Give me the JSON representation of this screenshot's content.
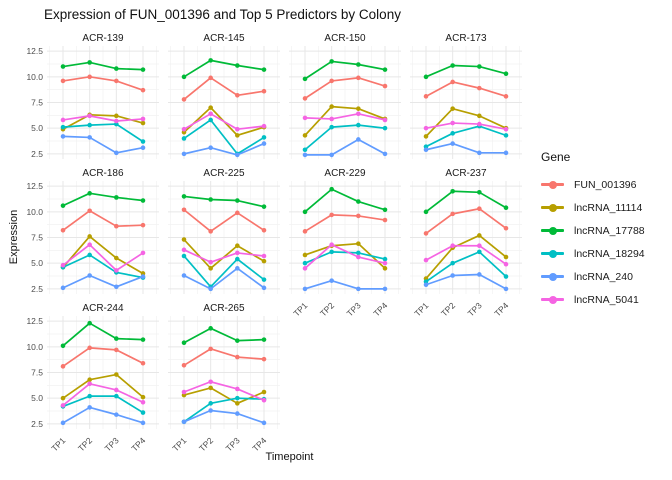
{
  "title": "Expression of FUN_001396 and Top 5 Predictors by Colony",
  "axes": {
    "x_title": "Timepoint",
    "y_title": "Expression",
    "x_ticks": [
      "TP1",
      "TP2",
      "TP3",
      "TP4"
    ],
    "y_ticks": [
      "2.5",
      "5.0",
      "7.5",
      "10.0",
      "12.5"
    ]
  },
  "legend": {
    "title": "Gene",
    "entries": [
      {
        "name": "FUN_001396",
        "color": "#F8766D"
      },
      {
        "name": "lncRNA_11114",
        "color": "#B79F00"
      },
      {
        "name": "lncRNA_17788",
        "color": "#00BA38"
      },
      {
        "name": "lncRNA_18294",
        "color": "#00BFC4"
      },
      {
        "name": "lncRNA_240",
        "color": "#619CFF"
      },
      {
        "name": "lncRNA_5041",
        "color": "#F564E3"
      }
    ]
  },
  "chart_data": {
    "type": "line",
    "title": "Expression of FUN_001396 and Top 5 Predictors by Colony",
    "xlabel": "Timepoint",
    "ylabel": "Expression",
    "x_categories": [
      "TP1",
      "TP2",
      "TP3",
      "TP4"
    ],
    "ylim": [
      2.0,
      13.0
    ],
    "y_major_ticks": [
      2.5,
      5.0,
      7.5,
      10.0,
      12.5
    ],
    "y_minor_gridlines": [
      3.75,
      6.25,
      8.75,
      11.25
    ],
    "grid": true,
    "legend_position": "right",
    "facet_columns": 4,
    "series_names": [
      "FUN_001396",
      "lncRNA_11114",
      "lncRNA_17788",
      "lncRNA_18294",
      "lncRNA_240",
      "lncRNA_5041"
    ],
    "series_colors": {
      "FUN_001396": "#F8766D",
      "lncRNA_11114": "#B79F00",
      "lncRNA_17788": "#00BA38",
      "lncRNA_18294": "#00BFC4",
      "lncRNA_240": "#619CFF",
      "lncRNA_5041": "#F564E3"
    },
    "facets": [
      {
        "name": "ACR-139",
        "values": {
          "FUN_001396": [
            9.6,
            10.0,
            9.6,
            8.7
          ],
          "lncRNA_11114": [
            4.9,
            6.3,
            6.2,
            5.5
          ],
          "lncRNA_17788": [
            11.0,
            11.4,
            10.8,
            10.7
          ],
          "lncRNA_18294": [
            5.1,
            5.3,
            5.4,
            3.7
          ],
          "lncRNA_240": [
            4.2,
            4.1,
            2.6,
            3.1
          ],
          "lncRNA_5041": [
            5.8,
            6.2,
            5.7,
            5.9
          ]
        }
      },
      {
        "name": "ACR-145",
        "values": {
          "FUN_001396": [
            7.8,
            9.9,
            8.2,
            8.6
          ],
          "lncRNA_11114": [
            4.6,
            7.0,
            4.3,
            5.1
          ],
          "lncRNA_17788": [
            10.0,
            11.6,
            11.1,
            10.7
          ],
          "lncRNA_18294": [
            4.0,
            5.8,
            2.5,
            4.1
          ],
          "lncRNA_240": [
            2.5,
            3.1,
            2.4,
            3.5
          ],
          "lncRNA_5041": [
            4.9,
            6.4,
            4.9,
            5.2
          ]
        }
      },
      {
        "name": "ACR-150",
        "values": {
          "FUN_001396": [
            7.9,
            9.6,
            9.9,
            9.1
          ],
          "lncRNA_11114": [
            4.3,
            7.1,
            6.9,
            5.9
          ],
          "lncRNA_17788": [
            9.8,
            11.5,
            11.2,
            10.7
          ],
          "lncRNA_18294": [
            2.9,
            5.1,
            5.3,
            5.0
          ],
          "lncRNA_240": [
            2.4,
            2.4,
            3.9,
            2.5
          ],
          "lncRNA_5041": [
            6.0,
            5.9,
            6.4,
            5.8
          ]
        }
      },
      {
        "name": "ACR-173",
        "values": {
          "FUN_001396": [
            8.1,
            9.5,
            8.9,
            8.1
          ],
          "lncRNA_11114": [
            4.2,
            6.9,
            6.2,
            5.0
          ],
          "lncRNA_17788": [
            10.0,
            11.1,
            11.0,
            10.3
          ],
          "lncRNA_18294": [
            3.2,
            4.5,
            5.2,
            4.3
          ],
          "lncRNA_240": [
            2.9,
            3.5,
            2.6,
            2.6
          ],
          "lncRNA_5041": [
            5.0,
            5.5,
            5.4,
            4.9
          ]
        }
      },
      {
        "name": "ACR-186",
        "values": {
          "FUN_001396": [
            8.2,
            10.1,
            8.6,
            8.7
          ],
          "lncRNA_11114": [
            4.6,
            7.6,
            5.5,
            4.0
          ],
          "lncRNA_17788": [
            10.6,
            11.8,
            11.4,
            11.1
          ],
          "lncRNA_18294": [
            4.6,
            5.8,
            4.1,
            3.6
          ],
          "lncRNA_240": [
            2.6,
            3.8,
            2.7,
            3.7
          ],
          "lncRNA_5041": [
            4.8,
            6.8,
            4.3,
            6.0
          ]
        }
      },
      {
        "name": "ACR-225",
        "values": {
          "FUN_001396": [
            10.2,
            8.1,
            9.9,
            8.2
          ],
          "lncRNA_11114": [
            7.3,
            4.5,
            6.7,
            5.2
          ],
          "lncRNA_17788": [
            11.5,
            11.2,
            11.1,
            10.5
          ],
          "lncRNA_18294": [
            5.7,
            2.7,
            5.4,
            3.4
          ],
          "lncRNA_240": [
            3.8,
            2.5,
            4.5,
            2.6
          ],
          "lncRNA_5041": [
            6.3,
            5.1,
            6.0,
            5.7
          ]
        }
      },
      {
        "name": "ACR-229",
        "values": {
          "FUN_001396": [
            8.1,
            9.7,
            9.6,
            9.2
          ],
          "lncRNA_11114": [
            5.8,
            6.7,
            6.9,
            4.5
          ],
          "lncRNA_17788": [
            10.0,
            12.2,
            11.0,
            10.2
          ],
          "lncRNA_18294": [
            5.0,
            6.1,
            6.0,
            5.4
          ],
          "lncRNA_240": [
            2.5,
            3.3,
            2.5,
            2.5
          ],
          "lncRNA_5041": [
            4.5,
            6.8,
            5.6,
            5.0
          ]
        }
      },
      {
        "name": "ACR-237",
        "values": {
          "FUN_001396": [
            7.9,
            9.8,
            10.3,
            8.4
          ],
          "lncRNA_11114": [
            3.5,
            6.5,
            7.7,
            5.6
          ],
          "lncRNA_17788": [
            10.0,
            12.0,
            11.9,
            10.4
          ],
          "lncRNA_18294": [
            3.2,
            5.0,
            6.1,
            3.7
          ],
          "lncRNA_240": [
            2.9,
            3.8,
            3.9,
            2.5
          ],
          "lncRNA_5041": [
            5.3,
            6.7,
            6.7,
            4.9
          ]
        }
      },
      {
        "name": "ACR-244",
        "values": {
          "FUN_001396": [
            8.1,
            9.9,
            9.7,
            8.4
          ],
          "lncRNA_11114": [
            5.0,
            6.8,
            7.3,
            5.1
          ],
          "lncRNA_17788": [
            10.1,
            12.3,
            10.8,
            10.7
          ],
          "lncRNA_18294": [
            4.2,
            5.2,
            5.2,
            3.6
          ],
          "lncRNA_240": [
            2.6,
            4.1,
            3.4,
            2.6
          ],
          "lncRNA_5041": [
            4.3,
            6.4,
            5.8,
            4.6
          ]
        }
      },
      {
        "name": "ACR-265",
        "values": {
          "FUN_001396": [
            8.2,
            9.8,
            9.0,
            8.8
          ],
          "lncRNA_11114": [
            5.3,
            6.0,
            4.5,
            5.6
          ],
          "lncRNA_17788": [
            10.4,
            11.8,
            10.6,
            10.7
          ],
          "lncRNA_18294": [
            2.7,
            4.5,
            5.0,
            4.9
          ],
          "lncRNA_240": [
            2.7,
            3.8,
            3.5,
            2.6
          ],
          "lncRNA_5041": [
            5.6,
            6.6,
            5.9,
            4.8
          ]
        }
      }
    ]
  }
}
